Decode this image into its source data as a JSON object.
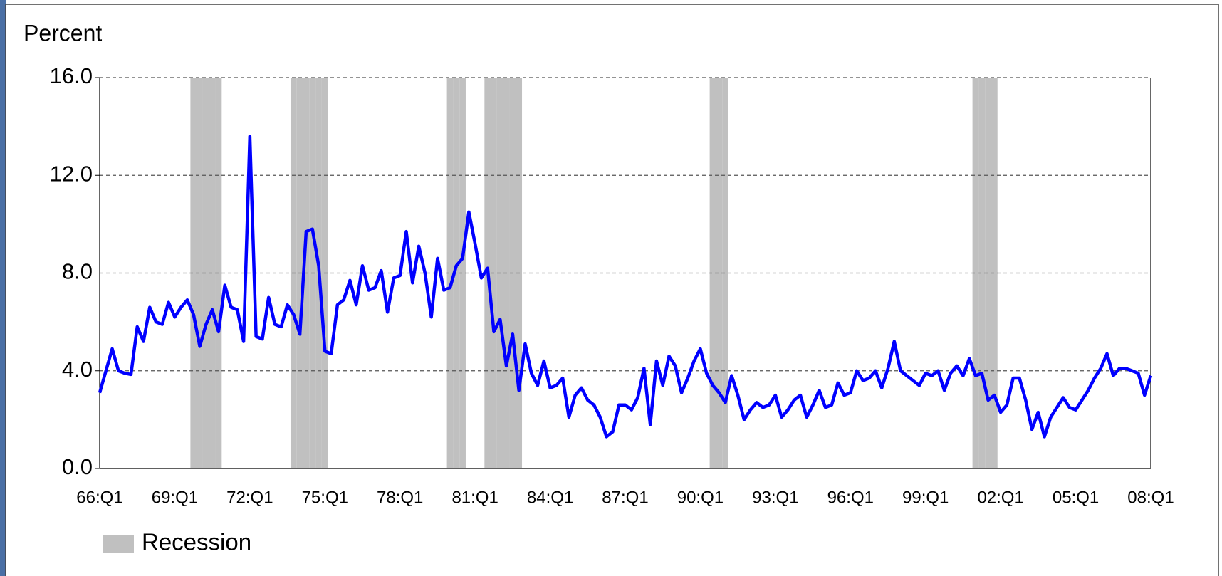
{
  "chart_data": {
    "type": "combo",
    "y_label": "Percent",
    "ylim": [
      0,
      16
    ],
    "yticks": [
      {
        "value": 0,
        "label": "0.0"
      },
      {
        "value": 4,
        "label": "4.0"
      },
      {
        "value": 8,
        "label": "8.0"
      },
      {
        "value": 12,
        "label": "12.0"
      },
      {
        "value": 16,
        "label": "16.0"
      }
    ],
    "grid": true,
    "legend": "bottom-left",
    "categories": [
      "66:Q1",
      null,
      null,
      null,
      null,
      null,
      null,
      null,
      null,
      null,
      null,
      null,
      "69:Q1",
      null,
      null,
      null,
      null,
      null,
      null,
      null,
      null,
      null,
      null,
      null,
      "72:Q1",
      null,
      null,
      null,
      null,
      null,
      null,
      null,
      null,
      null,
      null,
      null,
      "75:Q1",
      null,
      null,
      null,
      null,
      null,
      null,
      null,
      null,
      null,
      null,
      null,
      "78:Q1",
      null,
      null,
      null,
      null,
      null,
      null,
      null,
      null,
      null,
      null,
      null,
      "81:Q1",
      null,
      null,
      null,
      null,
      null,
      null,
      null,
      null,
      null,
      null,
      null,
      "84:Q1",
      null,
      null,
      null,
      null,
      null,
      null,
      null,
      null,
      null,
      null,
      null,
      "87:Q1",
      null,
      null,
      null,
      null,
      null,
      null,
      null,
      null,
      null,
      null,
      null,
      "90:Q1",
      null,
      null,
      null,
      null,
      null,
      null,
      null,
      null,
      null,
      null,
      null,
      "93:Q1",
      null,
      null,
      null,
      null,
      null,
      null,
      null,
      null,
      null,
      null,
      null,
      "96:Q1",
      null,
      null,
      null,
      null,
      null,
      null,
      null,
      null,
      null,
      null,
      null,
      "99:Q1",
      null,
      null,
      null,
      null,
      null,
      null,
      null,
      null,
      null,
      null,
      null,
      "02:Q1",
      null,
      null,
      null,
      null,
      null,
      null,
      null,
      null,
      null,
      null,
      null,
      "05:Q1",
      null,
      null,
      null,
      null,
      null,
      null,
      null,
      null,
      null,
      null,
      null,
      "08:Q1"
    ],
    "series": [
      {
        "type": "bar",
        "name": "Recession",
        "color": "#c0c0c0",
        "values": [
          null,
          null,
          null,
          null,
          null,
          null,
          null,
          null,
          null,
          null,
          null,
          null,
          null,
          null,
          null,
          16,
          16,
          16,
          16,
          16,
          null,
          null,
          null,
          null,
          null,
          null,
          null,
          null,
          null,
          null,
          null,
          16,
          16,
          16,
          16,
          16,
          16,
          null,
          null,
          null,
          null,
          null,
          null,
          null,
          null,
          null,
          null,
          null,
          null,
          null,
          null,
          null,
          null,
          null,
          null,
          null,
          16,
          16,
          16,
          null,
          null,
          null,
          16,
          16,
          16,
          16,
          16,
          16,
          null,
          null,
          null,
          null,
          null,
          null,
          null,
          null,
          null,
          null,
          null,
          null,
          null,
          null,
          null,
          null,
          null,
          null,
          null,
          null,
          null,
          null,
          null,
          null,
          null,
          null,
          null,
          null,
          null,
          null,
          16,
          16,
          16,
          null,
          null,
          null,
          null,
          null,
          null,
          null,
          null,
          null,
          null,
          null,
          null,
          null,
          null,
          null,
          null,
          null,
          null,
          null,
          null,
          null,
          null,
          null,
          null,
          null,
          null,
          null,
          null,
          null,
          null,
          null,
          null,
          null,
          null,
          null,
          null,
          null,
          null,
          null,
          16,
          16,
          16,
          16,
          null,
          null,
          null,
          null,
          null,
          null,
          null,
          null,
          null,
          null,
          null,
          null,
          null,
          null,
          null,
          null,
          null,
          null,
          null,
          null,
          null,
          null,
          null,
          null,
          null
        ]
      },
      {
        "type": "line",
        "color": "#0000ff",
        "values": [
          3.1,
          4.0,
          4.9,
          4.0,
          3.9,
          3.85,
          5.8,
          5.2,
          6.6,
          6.0,
          5.9,
          6.8,
          6.2,
          6.6,
          6.9,
          6.3,
          5.0,
          5.9,
          6.5,
          5.6,
          7.5,
          6.6,
          6.5,
          5.2,
          13.6,
          5.4,
          5.3,
          7.0,
          5.9,
          5.8,
          6.7,
          6.3,
          5.5,
          9.7,
          9.8,
          8.3,
          4.8,
          4.7,
          6.7,
          6.9,
          7.7,
          6.7,
          8.3,
          7.3,
          7.4,
          8.1,
          6.4,
          7.8,
          7.9,
          9.7,
          7.6,
          9.1,
          8.0,
          6.2,
          8.6,
          7.3,
          7.4,
          8.3,
          8.6,
          10.5,
          9.2,
          7.8,
          8.2,
          5.6,
          6.1,
          4.2,
          5.5,
          3.2,
          5.1,
          3.9,
          3.4,
          4.4,
          3.3,
          3.4,
          3.7,
          2.1,
          3.0,
          3.3,
          2.8,
          2.6,
          2.1,
          1.3,
          1.5,
          2.6,
          2.6,
          2.4,
          2.9,
          4.1,
          1.8,
          4.4,
          3.4,
          4.6,
          4.2,
          3.1,
          3.7,
          4.4,
          4.9,
          3.9,
          3.4,
          3.1,
          2.7,
          3.8,
          3.0,
          2.0,
          2.4,
          2.7,
          2.5,
          2.6,
          3.0,
          2.1,
          2.4,
          2.8,
          3.0,
          2.1,
          2.6,
          3.2,
          2.5,
          2.6,
          3.5,
          3.0,
          3.1,
          4.0,
          3.6,
          3.7,
          4.0,
          3.3,
          4.1,
          5.2,
          4.0,
          3.8,
          3.6,
          3.4,
          3.9,
          3.8,
          4.0,
          3.2,
          3.9,
          4.2,
          3.8,
          4.5,
          3.8,
          3.9,
          2.8,
          3.0,
          2.3,
          2.6,
          3.7,
          3.7,
          2.8,
          1.6,
          2.3,
          1.3,
          2.1,
          2.5,
          2.9,
          2.5,
          2.4,
          2.8,
          3.2,
          3.7,
          4.1,
          4.7,
          3.8,
          4.1,
          4.1,
          4.0,
          3.9,
          3.0,
          3.8
        ]
      }
    ]
  }
}
